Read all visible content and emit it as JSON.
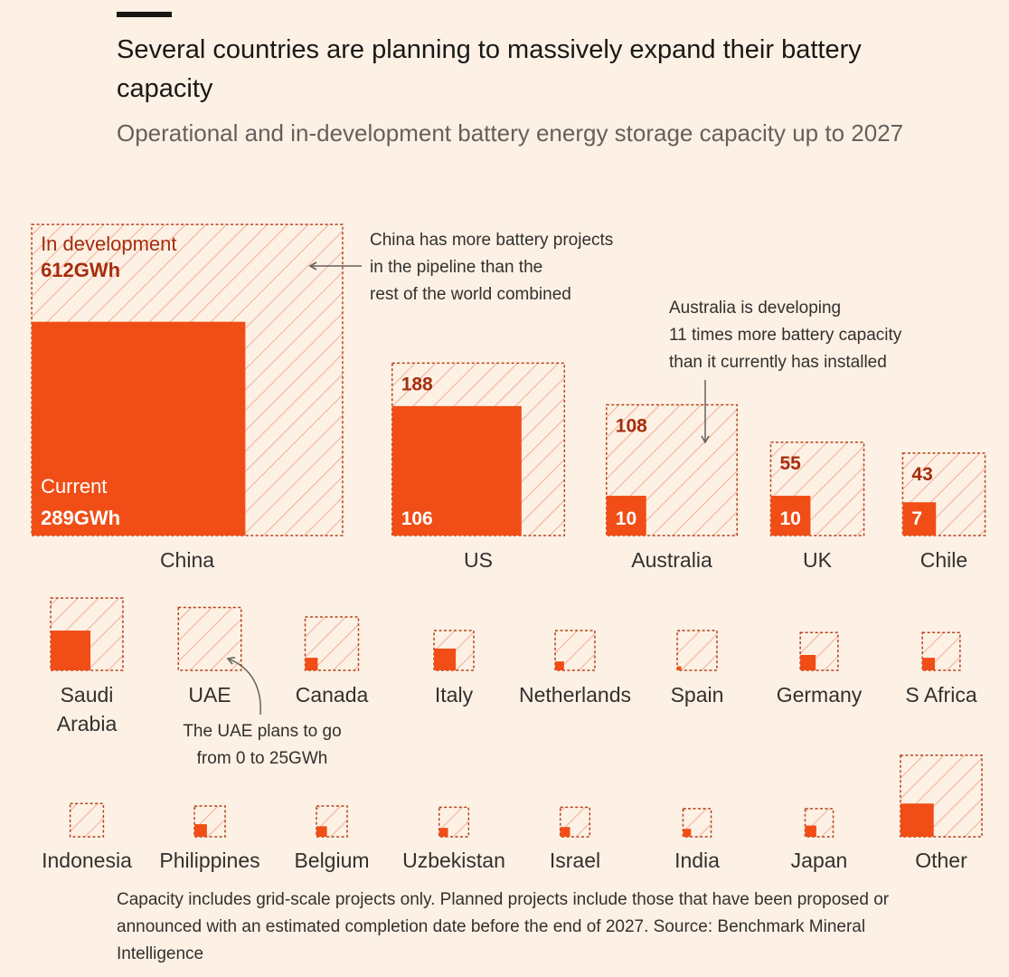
{
  "header": {
    "title": "Several countries are planning to massively expand their battery capacity",
    "subtitle": "Operational and in-development battery energy storage capacity up to 2027"
  },
  "colors": {
    "background": "#fdf1e5",
    "current": "#f04e16",
    "development_border": "#b5421a",
    "hatch": "#f2b39c",
    "label_dark": "#a52e0e"
  },
  "chart_data": {
    "type": "nested-square",
    "title": "Several countries are planning to massively expand their battery capacity",
    "subtitle": "Operational and in-development battery energy storage capacity up to 2027",
    "unit": "GWh",
    "legend": {
      "development_label": "In development",
      "development_value": "612GWh",
      "current_label": "Current",
      "current_value": "289GWh"
    },
    "countries": [
      {
        "name": "China",
        "development": 612,
        "current": 289
      },
      {
        "name": "US",
        "development": 188,
        "current": 106,
        "dev_label": "188",
        "cur_label": "106"
      },
      {
        "name": "Australia",
        "development": 108,
        "current": 10,
        "dev_label": "108",
        "cur_label": "10"
      },
      {
        "name": "UK",
        "development": 55,
        "current": 10,
        "dev_label": "55",
        "cur_label": "10"
      },
      {
        "name": "Chile",
        "development": 43,
        "current": 7,
        "dev_label": "43",
        "cur_label": "7"
      },
      {
        "name": "Saudi Arabia",
        "development": 33,
        "current": 10
      },
      {
        "name": "UAE",
        "development": 25,
        "current": 0
      },
      {
        "name": "Canada",
        "development": 18,
        "current": 1
      },
      {
        "name": "Italy",
        "development": 10,
        "current": 3
      },
      {
        "name": "Netherlands",
        "development": 10,
        "current": 0.5
      },
      {
        "name": "Spain",
        "development": 10,
        "current": 0.1
      },
      {
        "name": "Germany",
        "development": 9,
        "current": 1.5
      },
      {
        "name": "S Africa",
        "development": 9,
        "current": 1
      },
      {
        "name": "Indonesia",
        "development": 7,
        "current": 0
      },
      {
        "name": "Philippines",
        "development": 6,
        "current": 1
      },
      {
        "name": "Belgium",
        "development": 6,
        "current": 0.7
      },
      {
        "name": "Uzbekistan",
        "development": 5.5,
        "current": 0.5
      },
      {
        "name": "Israel",
        "development": 5.5,
        "current": 0.6
      },
      {
        "name": "India",
        "development": 5,
        "current": 0.4
      },
      {
        "name": "Japan",
        "development": 5,
        "current": 0.8
      },
      {
        "name": "Other",
        "development": 42,
        "current": 7
      }
    ],
    "annotations": [
      "China has more battery projects in the pipeline than the rest of the world combined",
      "Australia is developing 11 times more battery capacity than it currently has installed",
      "The UAE plans to go from 0 to 25GWh"
    ]
  },
  "annotations": {
    "china": [
      "China has more battery projects",
      "in the pipeline than the",
      "rest of the world combined"
    ],
    "australia": [
      "Australia is developing",
      "11 times more battery capacity",
      "than it currently has installed"
    ],
    "uae": [
      "The UAE plans to go",
      "from 0 to 25GWh"
    ]
  },
  "footer": {
    "source": "Capacity includes grid-scale projects only. Planned projects include those that have been proposed or announced with an estimated completion date before the end of 2027. Source: Benchmark Mineral Intelligence"
  }
}
